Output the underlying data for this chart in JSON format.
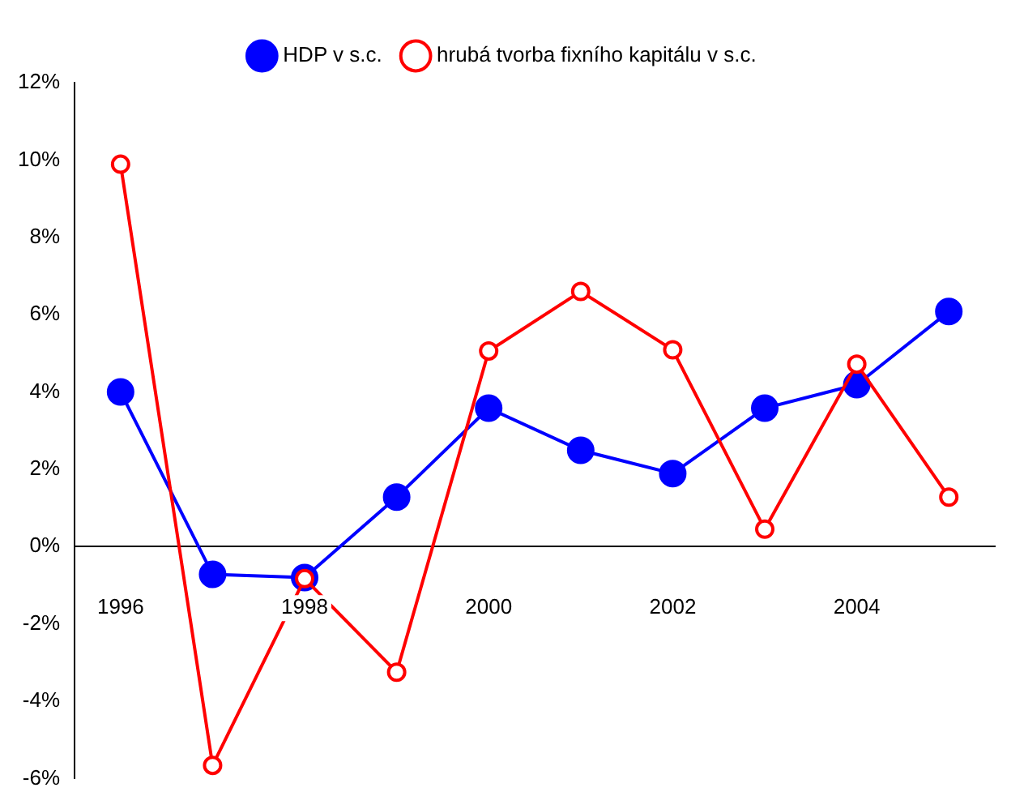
{
  "chart_data": {
    "type": "line",
    "categories": [
      "1996",
      null,
      "1998",
      null,
      "2000",
      null,
      "2002",
      null,
      "2004",
      null
    ],
    "series": [
      {
        "name": "HDP v s.c.",
        "color": "#0000ff",
        "marker": "circle",
        "values": [
          4.0,
          -0.72,
          -0.8,
          1.28,
          3.58,
          2.49,
          1.89,
          3.58,
          4.19,
          6.08
        ]
      },
      {
        "name": "hrubá tvorba fixního kapitálu v s.c.",
        "color": "#ff0000",
        "marker": "circle",
        "values": [
          9.89,
          -5.66,
          -0.83,
          -3.25,
          5.06,
          6.6,
          5.09,
          0.45,
          4.72,
          1.28
        ]
      }
    ],
    "ylim": [
      -6,
      12
    ],
    "yticks": [
      {
        "value": -6,
        "label": "-6%"
      },
      {
        "value": -4,
        "label": "-4%"
      },
      {
        "value": -2,
        "label": "-2%"
      },
      {
        "value": 0,
        "label": "0%"
      },
      {
        "value": 2,
        "label": "2%"
      },
      {
        "value": 4,
        "label": "4%"
      },
      {
        "value": 6,
        "label": "6%"
      },
      {
        "value": 8,
        "label": "8%"
      },
      {
        "value": 10,
        "label": "10%"
      },
      {
        "value": 12,
        "label": "12%"
      }
    ],
    "grid": false,
    "legend": "top",
    "line_style": "solid"
  }
}
